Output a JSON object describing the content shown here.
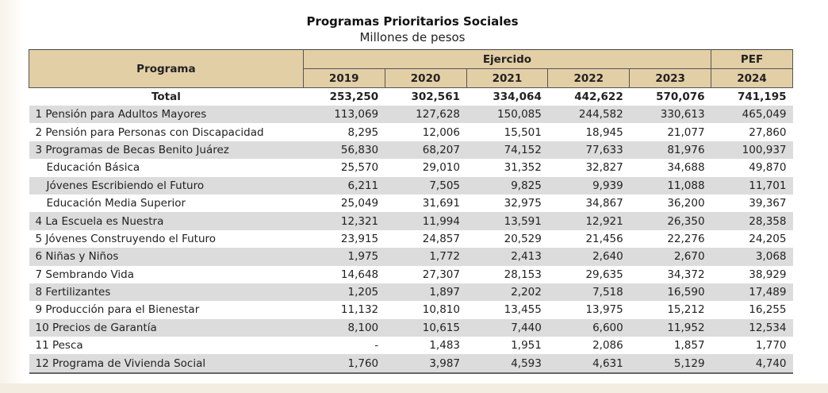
{
  "title": "Programas Prioritarios Sociales",
  "subtitle": "Millones de pesos",
  "header": {
    "programa": "Programa",
    "ejercido": "Ejercido",
    "pef": "PEF",
    "years": [
      "2019",
      "2020",
      "2021",
      "2022",
      "2023",
      "2024"
    ]
  },
  "total": {
    "label": "Total",
    "values": [
      "253,250",
      "302,561",
      "334,064",
      "442,622",
      "570,076",
      "741,195"
    ]
  },
  "rows": [
    {
      "label": "1 Pensión para Adultos Mayores",
      "values": [
        "113,069",
        "127,628",
        "150,085",
        "244,582",
        "330,613",
        "465,049"
      ],
      "sub": false
    },
    {
      "label": "2 Pensión para Personas con Discapacidad",
      "values": [
        "8,295",
        "12,006",
        "15,501",
        "18,945",
        "21,077",
        "27,860"
      ],
      "sub": false
    },
    {
      "label": "3 Programas de Becas Benito Juárez",
      "values": [
        "56,830",
        "68,207",
        "74,152",
        "77,633",
        "81,976",
        "100,937"
      ],
      "sub": false
    },
    {
      "label": "Educación Básica",
      "values": [
        "25,570",
        "29,010",
        "31,352",
        "32,827",
        "34,688",
        "49,870"
      ],
      "sub": true
    },
    {
      "label": "Jóvenes Escribiendo el Futuro",
      "values": [
        "6,211",
        "7,505",
        "9,825",
        "9,939",
        "11,088",
        "11,701"
      ],
      "sub": true
    },
    {
      "label": "Educación Media Superior",
      "values": [
        "25,049",
        "31,691",
        "32,975",
        "34,867",
        "36,200",
        "39,367"
      ],
      "sub": true
    },
    {
      "label": "4 La Escuela es Nuestra",
      "values": [
        "12,321",
        "11,994",
        "13,591",
        "12,921",
        "26,350",
        "28,358"
      ],
      "sub": false
    },
    {
      "label": "5 Jóvenes Construyendo el Futuro",
      "values": [
        "23,915",
        "24,857",
        "20,529",
        "21,456",
        "22,276",
        "24,205"
      ],
      "sub": false
    },
    {
      "label": "6 Niñas y Niños",
      "values": [
        "1,975",
        "1,772",
        "2,413",
        "2,640",
        "2,670",
        "3,068"
      ],
      "sub": false
    },
    {
      "label": "7 Sembrando Vida",
      "values": [
        "14,648",
        "27,307",
        "28,153",
        "29,635",
        "34,372",
        "38,929"
      ],
      "sub": false
    },
    {
      "label": "8 Fertilizantes",
      "values": [
        "1,205",
        "1,897",
        "2,202",
        "7,518",
        "16,590",
        "17,489"
      ],
      "sub": false
    },
    {
      "label": "9 Producción para el Bienestar",
      "values": [
        "11,132",
        "10,810",
        "13,455",
        "13,975",
        "15,212",
        "16,255"
      ],
      "sub": false
    },
    {
      "label": "10 Precios de Garantía",
      "values": [
        "8,100",
        "10,615",
        "7,440",
        "6,600",
        "11,952",
        "12,534"
      ],
      "sub": false
    },
    {
      "label": "11 Pesca",
      "values": [
        "-",
        "1,483",
        "1,951",
        "2,086",
        "1,857",
        "1,770"
      ],
      "sub": false
    },
    {
      "label": "12 Programa de Vivienda Social",
      "values": [
        "1,760",
        "3,987",
        "4,593",
        "4,631",
        "5,129",
        "4,740"
      ],
      "sub": false
    }
  ]
}
